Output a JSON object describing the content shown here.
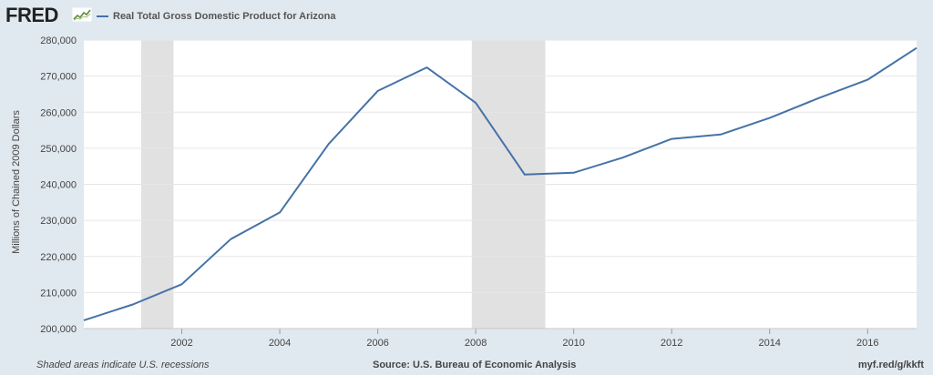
{
  "header": {
    "logo_text": "FRED",
    "logo_icon": "fred-chart-icon",
    "legend_label": "Real Total Gross Domestic Product for Arizona"
  },
  "footer": {
    "recessions_note": "Shaded areas indicate U.S. recessions",
    "source": "Source: U.S. Bureau of Economic Analysis",
    "short_url": "myf.red/g/kkft"
  },
  "colors": {
    "series": "#4572a7",
    "recession": "#e1e1e1",
    "background": "#e1e9f0",
    "plot_background": "#ffffff"
  },
  "chart_data": {
    "type": "line",
    "title": "",
    "ylabel": "Millions of Chained 2009 Dollars",
    "xlabel": "",
    "xlim": [
      2000,
      2017
    ],
    "ylim": [
      200000,
      280000
    ],
    "xticks": [
      2002,
      2004,
      2006,
      2008,
      2010,
      2012,
      2014,
      2016
    ],
    "yticks": [
      200000,
      210000,
      220000,
      230000,
      240000,
      250000,
      260000,
      270000,
      280000
    ],
    "ytick_labels": [
      "200,000",
      "210,000",
      "220,000",
      "230,000",
      "240,000",
      "250,000",
      "260,000",
      "270,000",
      "280,000"
    ],
    "grid": true,
    "legend_position": "top-left",
    "recessions": [
      {
        "start": 2001.17,
        "end": 2001.83
      },
      {
        "start": 2007.92,
        "end": 2009.42
      }
    ],
    "series": [
      {
        "name": "Real Total Gross Domestic Product for Arizona",
        "x": [
          2000,
          2001,
          2002,
          2003,
          2004,
          2005,
          2006,
          2007,
          2008,
          2009,
          2010,
          2011,
          2012,
          2013,
          2014,
          2015,
          2016,
          2017
        ],
        "values": [
          202300,
          206700,
          212300,
          224800,
          232200,
          251200,
          265900,
          272400,
          262600,
          242700,
          243200,
          247400,
          252600,
          253800,
          258400,
          263900,
          269000,
          277800
        ]
      }
    ]
  }
}
